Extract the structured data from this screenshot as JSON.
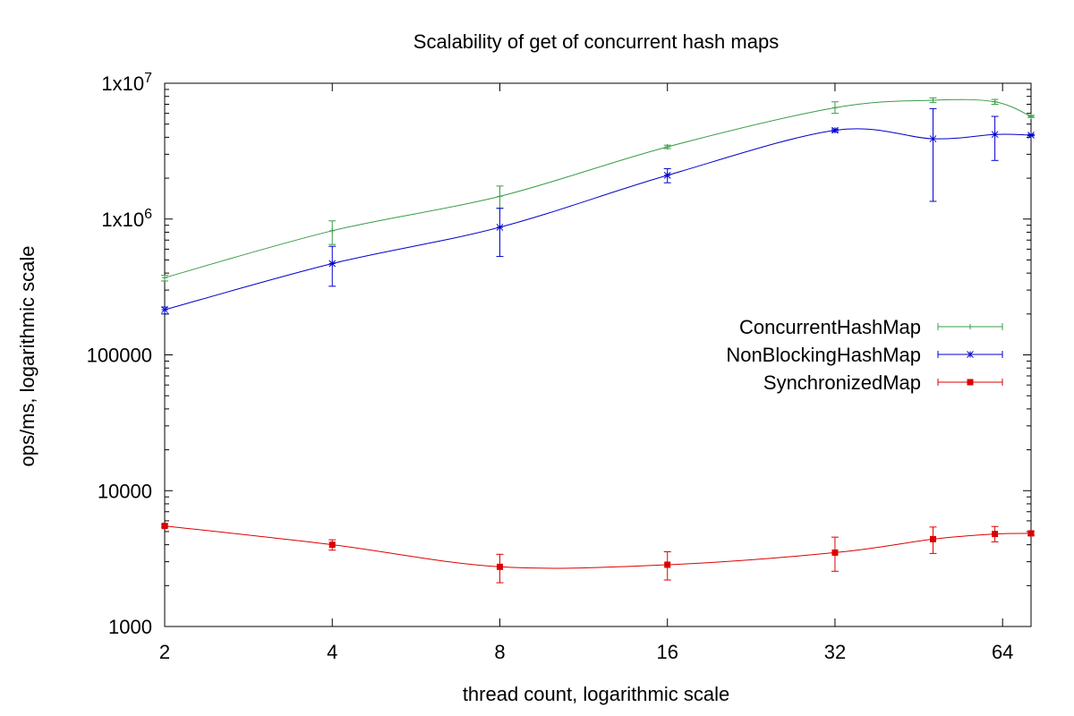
{
  "chart_data": {
    "type": "line",
    "title": "Scalability of get of concurrent hash maps",
    "xlabel": "thread count, logarithmic scale",
    "ylabel": "ops/ms, logarithmic scale",
    "x_scale": "log2",
    "y_scale": "log10",
    "xlim": [
      2,
      72
    ],
    "ylim": [
      1000,
      10000000
    ],
    "x_ticks": [
      {
        "value": 2,
        "label": "2"
      },
      {
        "value": 4,
        "label": "4"
      },
      {
        "value": 8,
        "label": "8"
      },
      {
        "value": 16,
        "label": "16"
      },
      {
        "value": 32,
        "label": "32"
      },
      {
        "value": 64,
        "label": "64"
      }
    ],
    "y_ticks": [
      {
        "value": 1000,
        "label": "1000"
      },
      {
        "value": 10000,
        "label": "10000"
      },
      {
        "value": 100000,
        "label": "100000"
      },
      {
        "value": 1000000,
        "label": "1x10",
        "sup": "6"
      },
      {
        "value": 10000000,
        "label": "1x10",
        "sup": "7"
      }
    ],
    "grid": false,
    "legend_position": "right",
    "series": [
      {
        "name": "ConcurrentHashMap",
        "color": "#3a9c48",
        "marker": "plus",
        "x": [
          2,
          4,
          8,
          16,
          32,
          48,
          62,
          72
        ],
        "y": [
          370000,
          820000,
          1470000,
          3400000,
          6600000,
          7500000,
          7300000,
          5700000
        ],
        "err_low": [
          350000,
          650000,
          1200000,
          3300000,
          6000000,
          7200000,
          7000000,
          5600000
        ],
        "err_high": [
          385000,
          970000,
          1750000,
          3500000,
          7300000,
          7800000,
          7600000,
          5800000
        ]
      },
      {
        "name": "NonBlockingHashMap",
        "color": "#0000cc",
        "marker": "star",
        "x": [
          2,
          4,
          8,
          16,
          32,
          48,
          62,
          72
        ],
        "y": [
          215000,
          470000,
          870000,
          2100000,
          4500000,
          3900000,
          4200000,
          4150000
        ],
        "err_low": [
          200000,
          320000,
          530000,
          1850000,
          4400000,
          1350000,
          2700000,
          4100000
        ],
        "err_high": [
          225000,
          630000,
          1200000,
          2350000,
          4600000,
          6500000,
          5700000,
          4200000
        ]
      },
      {
        "name": "SynchronizedMap",
        "color": "#dd0000",
        "marker": "square",
        "x": [
          2,
          4,
          8,
          16,
          32,
          48,
          62,
          72
        ],
        "y": [
          5500,
          4000,
          2750,
          2850,
          3500,
          4400,
          4800,
          4850
        ],
        "err_low": [
          5400,
          3650,
          2100,
          2200,
          2550,
          3450,
          4200,
          4700
        ],
        "err_high": [
          5650,
          4350,
          3400,
          3550,
          4550,
          5400,
          5450,
          5000
        ]
      }
    ]
  }
}
